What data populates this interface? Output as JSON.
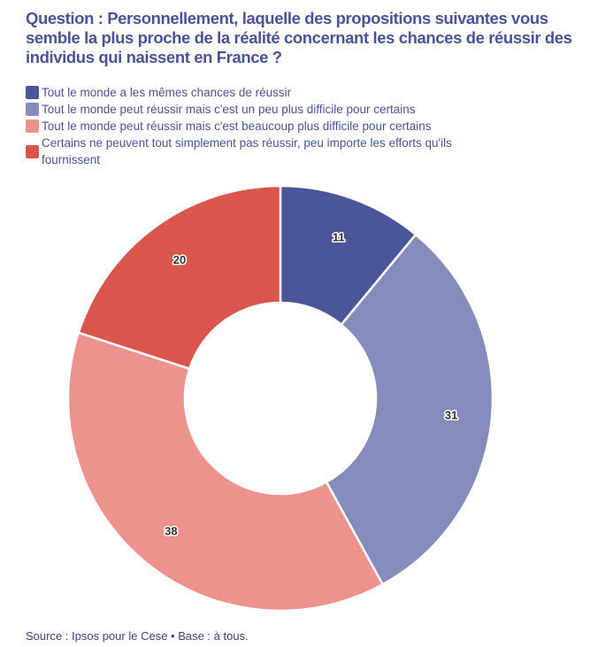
{
  "title": "Question : Personnellement, laquelle des propositions suivantes vous semble la plus proche de la réalité concernant les chances de réussir des individus qui naissent en France ?",
  "source": "Source : Ipsos pour le Cese • Base : à tous.",
  "chart_data": {
    "type": "pie",
    "variant": "donut",
    "title": "Question : Personnellement, laquelle des propositions suivantes vous semble la plus proche de la réalité concernant les chances de réussir des individus qui naissent en France ?",
    "legend_position": "top-left",
    "categories": [
      "Tout le monde a les mêmes chances de réussir",
      "Tout le monde peut réussir mais c'est un peu plus difficile pour certains",
      "Tout le monde peut réussir mais c'est beaucoup plus difficile pour certains",
      "Certains ne peuvent tout simplement pas réussir, peu importe les efforts qu'ils fournissent"
    ],
    "values": [
      11,
      31,
      38,
      20
    ],
    "labels": [
      "11",
      "31",
      "38",
      "20"
    ],
    "colors": [
      "#4b559a",
      "#858bba",
      "#ed928c",
      "#d8564c"
    ]
  }
}
